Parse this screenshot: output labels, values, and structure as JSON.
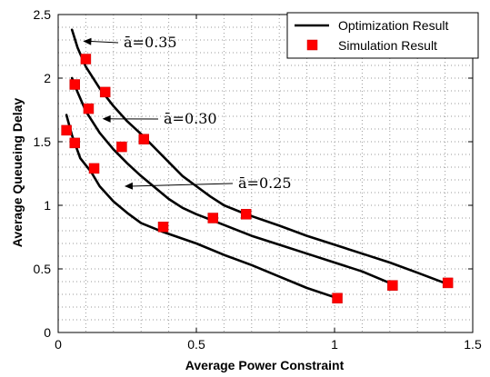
{
  "chart_data": {
    "type": "line",
    "xlabel": "Average Power Constraint",
    "ylabel": "Average Queueing Delay",
    "xlim": [
      0,
      1.5
    ],
    "ylim": [
      0,
      2.5
    ],
    "xticks": [
      0,
      0.5,
      1,
      1.5
    ],
    "xtick_labels": [
      "0",
      "0.5",
      "1",
      "1.5"
    ],
    "yticks": [
      0,
      0.5,
      1,
      1.5,
      2,
      2.5
    ],
    "ytick_labels": [
      "0",
      "0.5",
      "1",
      "1.5",
      "2",
      "2.5"
    ],
    "grid": true,
    "legend": {
      "placement": "top-right",
      "entries": [
        {
          "label": "Optimization Result",
          "kind": "line",
          "color": "#000000"
        },
        {
          "label": "Simulation Result",
          "kind": "marker",
          "color": "#ff0000"
        }
      ]
    },
    "series": [
      {
        "label": "ā=0.35",
        "curve": [
          [
            0.05,
            2.38
          ],
          [
            0.07,
            2.24
          ],
          [
            0.1,
            2.09
          ],
          [
            0.15,
            1.92
          ],
          [
            0.2,
            1.78
          ],
          [
            0.25,
            1.66
          ],
          [
            0.3,
            1.56
          ],
          [
            0.35,
            1.45
          ],
          [
            0.4,
            1.34
          ],
          [
            0.45,
            1.23
          ],
          [
            0.5,
            1.15
          ],
          [
            0.55,
            1.07
          ],
          [
            0.6,
            1.0
          ],
          [
            0.68,
            0.93
          ],
          [
            0.8,
            0.84
          ],
          [
            0.9,
            0.76
          ],
          [
            1.0,
            0.69
          ],
          [
            1.1,
            0.62
          ],
          [
            1.2,
            0.55
          ],
          [
            1.3,
            0.47
          ],
          [
            1.41,
            0.38
          ]
        ],
        "points": [
          [
            0.1,
            2.15
          ],
          [
            0.17,
            1.89
          ],
          [
            0.31,
            1.52
          ],
          [
            0.68,
            0.93
          ],
          [
            1.41,
            0.39
          ]
        ]
      },
      {
        "label": "ā=0.30",
        "curve": [
          [
            0.05,
            2.0
          ],
          [
            0.07,
            1.89
          ],
          [
            0.1,
            1.74
          ],
          [
            0.15,
            1.57
          ],
          [
            0.2,
            1.44
          ],
          [
            0.25,
            1.33
          ],
          [
            0.3,
            1.23
          ],
          [
            0.35,
            1.14
          ],
          [
            0.4,
            1.05
          ],
          [
            0.45,
            0.98
          ],
          [
            0.5,
            0.93
          ],
          [
            0.56,
            0.88
          ],
          [
            0.7,
            0.76
          ],
          [
            0.8,
            0.69
          ],
          [
            0.9,
            0.62
          ],
          [
            1.0,
            0.55
          ],
          [
            1.1,
            0.48
          ],
          [
            1.21,
            0.38
          ]
        ],
        "points": [
          [
            0.06,
            1.95
          ],
          [
            0.11,
            1.76
          ],
          [
            0.23,
            1.46
          ],
          [
            0.56,
            0.9
          ],
          [
            1.21,
            0.37
          ]
        ]
      },
      {
        "label": "ā=0.25",
        "curve": [
          [
            0.03,
            1.71
          ],
          [
            0.05,
            1.55
          ],
          [
            0.08,
            1.37
          ],
          [
            0.12,
            1.26
          ],
          [
            0.15,
            1.15
          ],
          [
            0.2,
            1.03
          ],
          [
            0.25,
            0.94
          ],
          [
            0.3,
            0.86
          ],
          [
            0.38,
            0.79
          ],
          [
            0.5,
            0.7
          ],
          [
            0.6,
            0.61
          ],
          [
            0.7,
            0.53
          ],
          [
            0.8,
            0.44
          ],
          [
            0.9,
            0.35
          ],
          [
            1.01,
            0.27
          ]
        ],
        "points": [
          [
            0.03,
            1.59
          ],
          [
            0.06,
            1.49
          ],
          [
            0.13,
            1.29
          ],
          [
            0.38,
            0.83
          ],
          [
            1.01,
            0.27
          ]
        ]
      }
    ],
    "annotations": [
      {
        "text": "ā=0.35",
        "points_to": [
          0.09,
          2.29
        ]
      },
      {
        "text": "ā=0.30",
        "points_to": [
          0.16,
          1.68
        ]
      },
      {
        "text": "ā=0.25",
        "points_to": [
          0.24,
          1.15
        ]
      }
    ]
  }
}
